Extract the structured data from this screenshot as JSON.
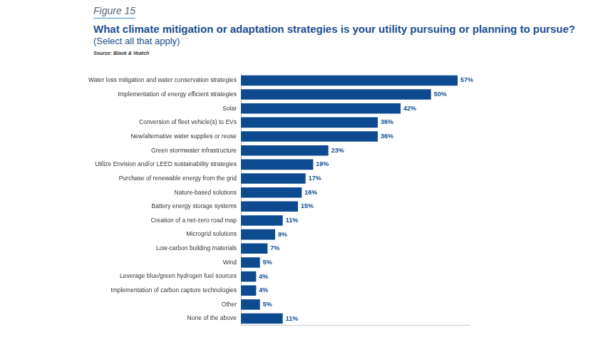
{
  "chart_data": {
    "type": "bar",
    "caption": "Figure 15",
    "title": "What climate mitigation or adaptation strategies is your utility pursuing or planning to pursue?",
    "subtitle": "(Select all that apply)",
    "source": "Source: Black & Veatch",
    "orientation": "horizontal",
    "categories": [
      "Water loss mitigation and water conservation strategies",
      "Implementation of energy efficient strategies",
      "Solar",
      "Conversion of fleet vehicle(s) to EVs",
      "New/alternative water supplies or reuse",
      "Green stormwater infrastructure",
      "Utilize Envision and/or LEED sustainability strategies",
      "Purchase of renewable energy from the grid",
      "Nature-based solutions",
      "Battery energy storage systems",
      "Creation of a net-zero road map",
      "Microgrid solutions",
      "Low-carbon building materials",
      "Wind",
      "Leverage blue/green hydrogen fuel sources",
      "Implementation of carbon capture technologies",
      "Other",
      "None of the above"
    ],
    "values": [
      57,
      50,
      42,
      36,
      36,
      23,
      19,
      17,
      16,
      15,
      11,
      9,
      7,
      5,
      4,
      4,
      5,
      11
    ],
    "value_labels": [
      "57%",
      "50%",
      "42%",
      "36%",
      "36%",
      "23%",
      "19%",
      "17%",
      "16%",
      "15%",
      "11%",
      "9%",
      "7%",
      "5%",
      "4%",
      "4%",
      "5%",
      "11%"
    ],
    "color": "#0d4a8f",
    "xlim": [
      0,
      60
    ],
    "data_labels": true,
    "tick_labels": "y",
    "grid": false
  }
}
